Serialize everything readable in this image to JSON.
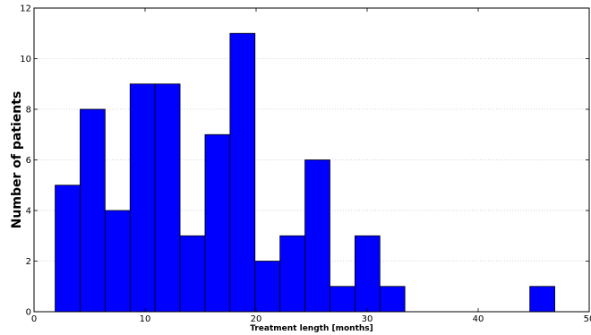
{
  "chart_data": {
    "type": "bar",
    "title": "",
    "xlabel": "Treatment length [months]",
    "ylabel": "Number of patients",
    "xlim": [
      0,
      50
    ],
    "ylim": [
      0,
      12
    ],
    "xticks": [
      0,
      10,
      20,
      30,
      40,
      50
    ],
    "yticks": [
      0,
      2,
      4,
      6,
      8,
      10,
      12
    ],
    "grid": "horizontal dotted",
    "bar_color": "#0000ff",
    "bins": [
      {
        "x0": 1.9,
        "x1": 4.15,
        "value": 5
      },
      {
        "x0": 4.15,
        "x1": 6.4,
        "value": 8
      },
      {
        "x0": 6.4,
        "x1": 8.65,
        "value": 4
      },
      {
        "x0": 8.65,
        "x1": 10.9,
        "value": 9
      },
      {
        "x0": 10.9,
        "x1": 13.15,
        "value": 9
      },
      {
        "x0": 13.15,
        "x1": 15.4,
        "value": 3
      },
      {
        "x0": 15.4,
        "x1": 17.65,
        "value": 7
      },
      {
        "x0": 17.65,
        "x1": 19.9,
        "value": 11
      },
      {
        "x0": 19.9,
        "x1": 22.15,
        "value": 2
      },
      {
        "x0": 22.15,
        "x1": 24.4,
        "value": 3
      },
      {
        "x0": 24.4,
        "x1": 26.65,
        "value": 6
      },
      {
        "x0": 26.65,
        "x1": 28.9,
        "value": 1
      },
      {
        "x0": 28.9,
        "x1": 31.15,
        "value": 3
      },
      {
        "x0": 31.15,
        "x1": 33.4,
        "value": 1
      },
      {
        "x0": 33.4,
        "x1": 35.65,
        "value": 0
      },
      {
        "x0": 35.65,
        "x1": 37.9,
        "value": 0
      },
      {
        "x0": 37.9,
        "x1": 40.15,
        "value": 0
      },
      {
        "x0": 40.15,
        "x1": 42.4,
        "value": 0
      },
      {
        "x0": 42.4,
        "x1": 44.65,
        "value": 0
      },
      {
        "x0": 44.65,
        "x1": 46.9,
        "value": 1
      }
    ]
  }
}
